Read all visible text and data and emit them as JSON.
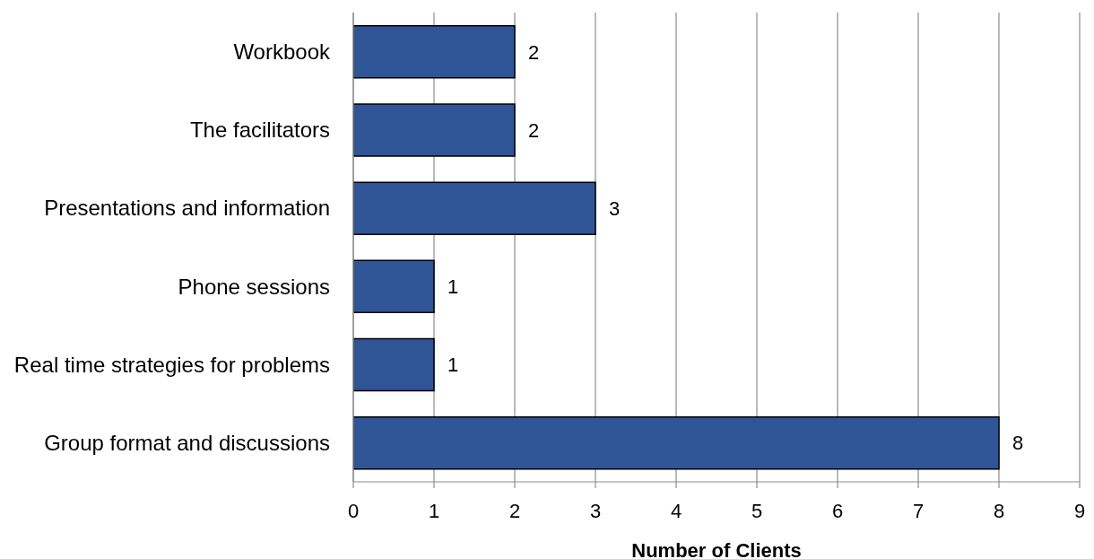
{
  "chart_data": {
    "type": "bar",
    "orientation": "horizontal",
    "categories": [
      "Workbook",
      "The facilitators",
      "Presentations and information",
      "Phone sessions",
      "Real time strategies for problems",
      "Group format and discussions"
    ],
    "values": [
      2,
      2,
      3,
      1,
      1,
      8
    ],
    "color": "#2f5597",
    "xlim": [
      0,
      9
    ],
    "xticks": [
      0,
      1,
      2,
      3,
      4,
      5,
      6,
      7,
      8,
      9
    ],
    "xlabel": "Number of Clients",
    "grid": "x",
    "data_labels": true
  }
}
